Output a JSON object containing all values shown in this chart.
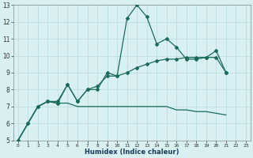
{
  "xlabel": "Humidex (Indice chaleur)",
  "x": [
    0,
    1,
    2,
    3,
    4,
    5,
    6,
    7,
    8,
    9,
    10,
    11,
    12,
    13,
    14,
    15,
    16,
    17,
    18,
    19,
    20,
    21,
    22,
    23
  ],
  "line1": [
    5.0,
    6.0,
    7.0,
    7.3,
    7.2,
    8.3,
    7.3,
    8.0,
    8.0,
    9.0,
    8.8,
    12.2,
    13.0,
    12.3,
    10.7,
    11.0,
    10.5,
    9.8,
    9.8,
    9.9,
    10.3,
    9.0,
    null,
    null
  ],
  "line2": [
    5.0,
    6.0,
    7.0,
    7.3,
    7.3,
    8.3,
    7.3,
    8.0,
    8.2,
    8.8,
    8.8,
    9.0,
    9.3,
    9.5,
    9.7,
    9.8,
    9.8,
    9.9,
    9.9,
    9.9,
    9.9,
    9.0,
    null,
    null
  ],
  "line3": [
    5.0,
    6.0,
    7.0,
    7.3,
    7.2,
    7.2,
    7.0,
    7.0,
    7.0,
    7.0,
    7.0,
    7.0,
    7.0,
    7.0,
    7.0,
    7.0,
    6.8,
    6.8,
    6.7,
    6.7,
    6.6,
    6.5,
    null,
    null
  ],
  "line_color": "#1a6b5c",
  "bg_color": "#d8f0f0",
  "grid_color": "#b8dada",
  "ylim": [
    5,
    13
  ],
  "xlim": [
    -0.5,
    23.5
  ],
  "yticks": [
    5,
    6,
    7,
    8,
    9,
    10,
    11,
    12,
    13
  ],
  "xticks": [
    0,
    1,
    2,
    3,
    4,
    5,
    6,
    7,
    8,
    9,
    10,
    11,
    12,
    13,
    14,
    15,
    16,
    17,
    18,
    19,
    20,
    21,
    22,
    23
  ]
}
